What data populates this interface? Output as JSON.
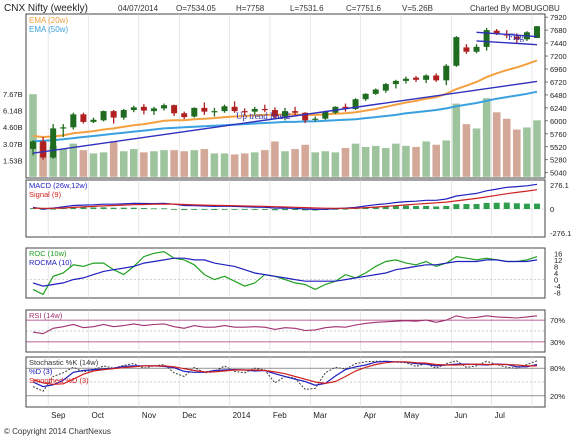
{
  "header": {
    "title": "CNX Nifty (weekly)",
    "date": "04/07/2014",
    "open": "O=7534.05",
    "high": "H=7758",
    "low": "L=7531.6",
    "close": "C=7751.6",
    "volume": "V=5.26B",
    "charted_by": "Charted By MOBUGOBU"
  },
  "footer": {
    "copyright": "© Copyright 2014 ChartNexus"
  },
  "colors": {
    "up_candle": "#1f6b1f",
    "down_candle": "#b02020",
    "ema20": "#f4a040",
    "ema50": "#3aa0e0",
    "trendline": "#3030c0",
    "vol_up": "#9ec49e",
    "vol_down": "#d4a898",
    "macd": "#2020c0",
    "signal": "#d02020",
    "hist": "#2e9e4e",
    "roc": "#20a020",
    "rocma": "#2020c0",
    "rsi": "#a03070",
    "k": "#404040",
    "d": "#2020c0",
    "sd": "#d02020"
  },
  "chart_data": [
    {
      "type": "candlestick",
      "title": "CNX Nifty (weekly)",
      "x_axis_labels": [
        "Sep",
        "Oct",
        "Nov",
        "Dec",
        "2014",
        "Feb",
        "Mar",
        "Apr",
        "May",
        "Jun",
        "Jul"
      ],
      "price_ticks": [
        5040,
        5280,
        5520,
        5760,
        6000,
        6240,
        6480,
        6720,
        6960,
        7200,
        7440,
        7680,
        7920
      ],
      "volume_ticks": [
        "1.53B",
        "3.07B",
        "4.60B",
        "6.14B",
        "7.67B"
      ],
      "legend": [
        "EMA (20w)",
        "EMA (50w)"
      ],
      "annotations": [
        "Up trend line 2",
        "Flag"
      ],
      "ohlc": [
        [
          5480,
          5640,
          5360,
          5620
        ],
        [
          5620,
          5700,
          5280,
          5320
        ],
        [
          5320,
          5940,
          5300,
          5860
        ],
        [
          5860,
          5940,
          5700,
          5880
        ],
        [
          5880,
          6150,
          5840,
          6120
        ],
        [
          6120,
          6150,
          5950,
          5980
        ],
        [
          5980,
          6060,
          5960,
          6020
        ],
        [
          6010,
          6190,
          5990,
          6180
        ],
        [
          6180,
          6200,
          5950,
          6060
        ],
        [
          6060,
          6220,
          6020,
          6200
        ],
        [
          6200,
          6280,
          6160,
          6250
        ],
        [
          6260,
          6310,
          6120,
          6190
        ],
        [
          6180,
          6260,
          6110,
          6230
        ],
        [
          6230,
          6320,
          6190,
          6290
        ],
        [
          6290,
          6300,
          6090,
          6140
        ],
        [
          6140,
          6170,
          6030,
          6070
        ],
        [
          6080,
          6250,
          6060,
          6240
        ],
        [
          6240,
          6340,
          6110,
          6170
        ],
        [
          6170,
          6240,
          6080,
          6180
        ],
        [
          6180,
          6300,
          6150,
          6270
        ],
        [
          6260,
          6360,
          6150,
          6180
        ],
        [
          6180,
          6230,
          6110,
          6170
        ],
        [
          6170,
          6260,
          6120,
          6220
        ],
        [
          6220,
          6300,
          6160,
          6200
        ],
        [
          6200,
          6250,
          6050,
          6080
        ],
        [
          6080,
          6240,
          6010,
          6180
        ],
        [
          6180,
          6260,
          6100,
          6150
        ],
        [
          6150,
          6160,
          5960,
          6010
        ],
        [
          6020,
          6080,
          5990,
          6040
        ],
        [
          6040,
          6190,
          6020,
          6170
        ],
        [
          6150,
          6270,
          6130,
          6260
        ],
        [
          6260,
          6320,
          6170,
          6220
        ],
        [
          6220,
          6420,
          6200,
          6400
        ],
        [
          6400,
          6510,
          6370,
          6500
        ],
        [
          6500,
          6600,
          6480,
          6580
        ],
        [
          6560,
          6700,
          6520,
          6680
        ],
        [
          6680,
          6760,
          6600,
          6740
        ],
        [
          6740,
          6820,
          6690,
          6780
        ],
        [
          6800,
          6830,
          6720,
          6760
        ],
        [
          6760,
          6860,
          6700,
          6840
        ],
        [
          6840,
          6880,
          6720,
          6750
        ],
        [
          6750,
          7050,
          6660,
          7020
        ],
        [
          7020,
          7570,
          7000,
          7550
        ],
        [
          7360,
          7420,
          7240,
          7280
        ],
        [
          7280,
          7420,
          7250,
          7370
        ],
        [
          7370,
          7720,
          7300,
          7680
        ],
        [
          7670,
          7700,
          7590,
          7620
        ],
        [
          7610,
          7680,
          7530,
          7580
        ],
        [
          7560,
          7620,
          7430,
          7510
        ],
        [
          7510,
          7660,
          7480,
          7640
        ],
        [
          7534.05,
          7758,
          7531.6,
          7751.6
        ]
      ],
      "volume_billions": [
        7.67,
        3.2,
        2.9,
        2.6,
        3.1,
        2.5,
        2.2,
        2.3,
        3.3,
        2.4,
        2.6,
        2.3,
        2.4,
        2.5,
        2.5,
        2.4,
        2.5,
        2.6,
        2.2,
        2.2,
        2.1,
        2.2,
        2.3,
        2.5,
        3.3,
        2.4,
        2.6,
        3.0,
        2.3,
        2.4,
        2.3,
        2.7,
        3.1,
        2.8,
        2.9,
        2.7,
        3.1,
        2.9,
        2.8,
        3.3,
        3.0,
        3.4,
        6.8,
        4.9,
        4.5,
        7.3,
        6.0,
        5.4,
        4.4,
        4.6,
        5.26
      ],
      "ema20": [
        5720,
        5700,
        5710,
        5730,
        5770,
        5790,
        5810,
        5840,
        5860,
        5890,
        5920,
        5940,
        5970,
        6000,
        6010,
        6010,
        6030,
        6040,
        6050,
        6070,
        6080,
        6090,
        6100,
        6110,
        6110,
        6120,
        6120,
        6110,
        6110,
        6120,
        6130,
        6140,
        6160,
        6190,
        6220,
        6260,
        6300,
        6340,
        6370,
        6410,
        6440,
        6500,
        6590,
        6650,
        6720,
        6810,
        6880,
        6940,
        6990,
        7050,
        7120
      ],
      "ema50": [
        5620,
        5630,
        5640,
        5660,
        5680,
        5700,
        5720,
        5740,
        5760,
        5780,
        5800,
        5820,
        5840,
        5860,
        5870,
        5880,
        5890,
        5900,
        5910,
        5920,
        5930,
        5940,
        5950,
        5960,
        5970,
        5980,
        5980,
        5990,
        5990,
        6000,
        6010,
        6020,
        6030,
        6050,
        6070,
        6090,
        6110,
        6140,
        6160,
        6180,
        6200,
        6230,
        6270,
        6300,
        6330,
        6370,
        6410,
        6440,
        6470,
        6500,
        6540
      ],
      "trendline": [
        [
          0,
          5400
        ],
        [
          50,
          6730
        ]
      ],
      "flag_lines": [
        [
          [
            44,
            7640
          ],
          [
            50,
            7560
          ]
        ],
        [
          [
            44,
            7480
          ],
          [
            50,
            7410
          ]
        ]
      ]
    },
    {
      "type": "line",
      "title": "MACD (26w,12w)",
      "series": [
        {
          "name": "MACD (26w,12w)",
          "values": [
            20,
            0,
            10,
            25,
            40,
            45,
            48,
            55,
            55,
            60,
            65,
            63,
            62,
            65,
            55,
            40,
            38,
            35,
            30,
            32,
            30,
            25,
            22,
            20,
            12,
            10,
            8,
            0,
            -5,
            -3,
            5,
            10,
            20,
            35,
            50,
            60,
            75,
            85,
            90,
            100,
            100,
            115,
            150,
            165,
            180,
            210,
            230,
            250,
            258,
            268,
            285
          ]
        },
        {
          "name": "Signal (9)",
          "values": [
            10,
            8,
            8,
            12,
            18,
            24,
            30,
            36,
            40,
            45,
            50,
            52,
            55,
            57,
            56,
            52,
            48,
            45,
            42,
            40,
            38,
            35,
            32,
            30,
            26,
            23,
            20,
            16,
            12,
            9,
            8,
            8,
            10,
            15,
            22,
            30,
            38,
            47,
            55,
            64,
            71,
            80,
            94,
            108,
            122,
            140,
            158,
            176,
            192,
            207,
            223
          ]
        }
      ],
      "histogram": [
        10,
        -8,
        2,
        13,
        22,
        21,
        18,
        19,
        15,
        15,
        15,
        11,
        7,
        8,
        -1,
        -12,
        -10,
        -10,
        -12,
        -8,
        -8,
        -10,
        -10,
        -10,
        -14,
        -13,
        -12,
        -16,
        -17,
        -12,
        -3,
        2,
        10,
        20,
        28,
        30,
        37,
        38,
        35,
        36,
        29,
        35,
        56,
        57,
        58,
        70,
        72,
        74,
        66,
        61,
        62
      ],
      "ticks": [
        "276.1",
        "0",
        "-276.1"
      ]
    },
    {
      "type": "line",
      "title": "ROC (10w)",
      "series": [
        {
          "name": "ROC (10w)",
          "values": [
            -6,
            -9,
            2,
            4,
            9,
            8,
            10,
            10,
            6,
            3,
            8,
            14,
            16,
            17,
            13,
            12,
            9,
            3,
            0,
            2,
            -1,
            -4,
            -2,
            3,
            2,
            0,
            -2,
            -3,
            -6,
            -3,
            -1,
            3,
            1,
            4,
            8,
            11,
            12,
            10,
            9,
            11,
            8,
            10,
            14,
            13,
            12,
            13,
            12,
            11,
            11,
            12,
            14
          ]
        },
        {
          "name": "ROCMA (10)",
          "values": [
            -2,
            -4,
            -3,
            -2,
            0,
            1,
            3,
            5,
            6,
            7,
            8,
            10,
            11,
            12,
            13,
            13,
            12,
            12,
            10,
            9,
            8,
            6,
            4,
            3,
            2,
            1,
            0,
            -1,
            -1,
            -1,
            -1,
            0,
            1,
            2,
            3,
            4,
            6,
            7,
            8,
            9,
            9,
            10,
            11,
            11,
            11,
            12,
            12,
            11,
            11,
            11,
            12
          ]
        }
      ],
      "ticks": [
        16,
        12,
        8,
        4,
        0,
        -4,
        -8
      ]
    },
    {
      "type": "line",
      "title": "RSI (14w)",
      "series": [
        {
          "name": "RSI (14w)",
          "values": [
            48,
            45,
            55,
            58,
            62,
            56,
            58,
            62,
            58,
            60,
            63,
            60,
            62,
            63,
            58,
            55,
            60,
            57,
            57,
            60,
            57,
            57,
            58,
            57,
            53,
            56,
            55,
            51,
            52,
            56,
            58,
            57,
            61,
            64,
            66,
            67,
            68,
            69,
            68,
            70,
            66,
            70,
            78,
            74,
            75,
            78,
            76,
            75,
            74,
            76,
            78
          ]
        }
      ],
      "levels": [
        70,
        30
      ],
      "ticks": [
        "70%",
        "30%"
      ]
    },
    {
      "type": "line",
      "title": "Stochastic %K (14w)",
      "series": [
        {
          "name": "Stochastic %K (14w)",
          "values": [
            40,
            30,
            62,
            70,
            82,
            72,
            76,
            85,
            80,
            86,
            90,
            80,
            85,
            88,
            70,
            62,
            82,
            70,
            72,
            85,
            73,
            70,
            80,
            76,
            48,
            62,
            58,
            34,
            36,
            70,
            82,
            78,
            90,
            94,
            95,
            95,
            93,
            92,
            84,
            90,
            80,
            90,
            96,
            82,
            85,
            95,
            88,
            82,
            80,
            88,
            96
          ]
        },
        {
          "name": "%D (3)",
          "values": [
            50,
            40,
            44,
            54,
            71,
            75,
            77,
            78,
            80,
            84,
            85,
            85,
            85,
            84,
            81,
            73,
            71,
            71,
            75,
            76,
            77,
            76,
            74,
            75,
            68,
            62,
            56,
            51,
            43,
            47,
            63,
            77,
            83,
            87,
            93,
            95,
            94,
            93,
            90,
            89,
            85,
            87,
            89,
            89,
            88,
            87,
            89,
            88,
            83,
            83,
            88
          ]
        },
        {
          "name": "Smoothed %D (3)",
          "values": [
            55,
            48,
            45,
            46,
            56,
            67,
            74,
            77,
            79,
            81,
            83,
            85,
            85,
            85,
            83,
            79,
            75,
            72,
            72,
            74,
            76,
            76,
            76,
            75,
            72,
            68,
            62,
            56,
            50,
            47,
            51,
            62,
            74,
            82,
            88,
            92,
            94,
            94,
            92,
            91,
            88,
            87,
            87,
            88,
            89,
            88,
            88,
            88,
            87,
            85,
            85
          ]
        }
      ],
      "levels": [
        80,
        20
      ],
      "ticks": [
        "80%",
        "20%"
      ]
    }
  ]
}
